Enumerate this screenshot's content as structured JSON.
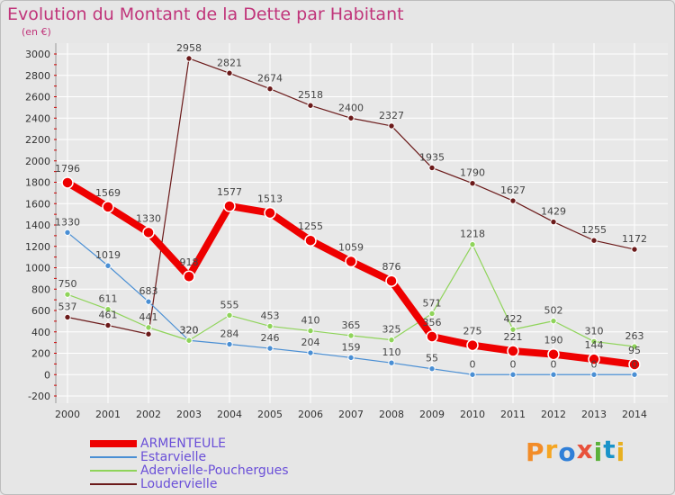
{
  "header": {
    "title": "Evolution du Montant de la Dette par Habitant",
    "subtitle": "(en €)"
  },
  "brand": {
    "text": "Proxiti",
    "letter_colors": [
      "#f28c28",
      "#f5a623",
      "#2f7fd8",
      "#e8513b",
      "#5bb13a",
      "#1a93c9",
      "#e8b020"
    ]
  },
  "colors": {
    "title": "#c0347a",
    "legend_text": "#6a4fd8",
    "background": "#e6e6e6",
    "grid": "#ffffff",
    "axis_tick_marks": "#cc0000"
  },
  "chart_data": {
    "type": "line",
    "title": "Evolution du Montant de la Dette par Habitant",
    "ylabel": "(en €)",
    "xlabel": "",
    "x": [
      "2000",
      "2001",
      "2002",
      "2003",
      "2004",
      "2005",
      "2006",
      "2007",
      "2008",
      "2009",
      "2010",
      "2011",
      "2012",
      "2013",
      "2014"
    ],
    "ylim": [
      -200,
      3000
    ],
    "yticks": [
      -200,
      0,
      200,
      400,
      600,
      800,
      1000,
      1200,
      1400,
      1600,
      1800,
      2000,
      2200,
      2400,
      2600,
      2800,
      3000
    ],
    "grid": true,
    "legend_position": "bottom-left",
    "series": [
      {
        "name": "Loudervielle",
        "color": "#6b1a1a",
        "width": 1.2,
        "marker": 3.2,
        "values": [
          537,
          461,
          379,
          2958,
          2821,
          2674,
          2518,
          2400,
          2327,
          1935,
          1790,
          1627,
          1429,
          1255,
          1172
        ],
        "labels": [
          "537",
          "461",
          "",
          "2958",
          "2821",
          "2674",
          "2518",
          "2400",
          "2327",
          "1935",
          "1790",
          "1627",
          "1429",
          "1255",
          "1172"
        ]
      },
      {
        "name": "Estarvielle",
        "color": "#4a8fd4",
        "width": 1.2,
        "marker": 3.2,
        "values": [
          1330,
          1019,
          683,
          320,
          284,
          246,
          204,
          159,
          110,
          55,
          0,
          0,
          0,
          0,
          0
        ],
        "labels": [
          "1330",
          "1019",
          "683",
          "320",
          "284",
          "246",
          "204",
          "159",
          "110",
          "55",
          "0",
          "0",
          "0",
          "0",
          "0"
        ]
      },
      {
        "name": "Adervielle-Pouchergues",
        "color": "#8fd45a",
        "width": 1.2,
        "marker": 3.2,
        "values": [
          750,
          611,
          441,
          320,
          555,
          453,
          410,
          365,
          325,
          571,
          1218,
          422,
          502,
          310,
          263
        ],
        "labels": [
          "750",
          "611",
          "441",
          "320",
          "555",
          "453",
          "410",
          "365",
          "325",
          "571",
          "1218",
          "422",
          "502",
          "310",
          "263"
        ]
      },
      {
        "name": "ARMENTEULE",
        "color": "#ee0000",
        "width": 8,
        "marker": 6,
        "values": [
          1796,
          1569,
          1330,
          918,
          1577,
          1513,
          1255,
          1059,
          876,
          356,
          275,
          221,
          190,
          144,
          95
        ],
        "labels": [
          "1796",
          "1569",
          "1330",
          "918",
          "1577",
          "1513",
          "1255",
          "1059",
          "876",
          "356",
          "275",
          "221",
          "190",
          "144",
          "95"
        ]
      }
    ],
    "legend_order": [
      "ARMENTEULE",
      "Estarvielle",
      "Adervielle-Pouchergues",
      "Loudervielle"
    ]
  }
}
